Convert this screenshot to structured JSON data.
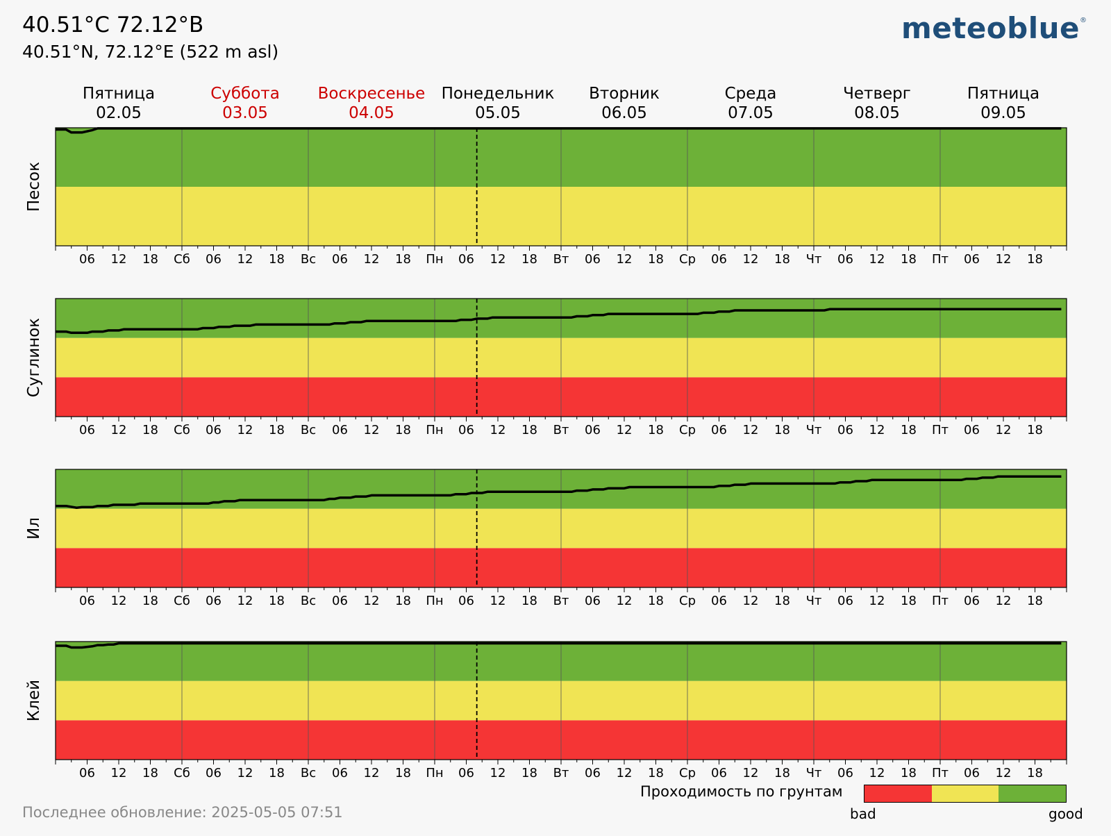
{
  "header": {
    "title": "40.51°C 72.12°B",
    "subtitle": "40.51°N, 72.12°E (522 m asl)"
  },
  "logo": {
    "text": "meteoblue",
    "mark": "®"
  },
  "footer": {
    "last_update": "Последнее обновление: 2025-05-05 07:51"
  },
  "legend": {
    "title": "Проходимость по грунтам",
    "bad_label": "bad",
    "good_label": "good",
    "colors": [
      "#f53535",
      "#f0e454",
      "#6db138"
    ]
  },
  "colors": {
    "good": "#6db138",
    "medium": "#f0e454",
    "bad": "#f53535",
    "weekend_text": "#cc0000",
    "line": "#000000"
  },
  "chart_data": {
    "type": "line",
    "now_marker_hours": 80,
    "days": [
      {
        "name": "Пятница",
        "date": "02.05",
        "weekend": false,
        "short": ""
      },
      {
        "name": "Суббота",
        "date": "03.05",
        "weekend": true,
        "short": "Сб"
      },
      {
        "name": "Воскресенье",
        "date": "04.05",
        "weekend": true,
        "short": "Вс"
      },
      {
        "name": "Понедельник",
        "date": "05.05",
        "weekend": false,
        "short": "Пн"
      },
      {
        "name": "Вторник",
        "date": "06.05",
        "weekend": false,
        "short": "Вт"
      },
      {
        "name": "Среда",
        "date": "07.05",
        "weekend": false,
        "short": "Ср"
      },
      {
        "name": "Четверг",
        "date": "08.05",
        "weekend": false,
        "short": "Чт"
      },
      {
        "name": "Пятница",
        "date": "09.05",
        "weekend": false,
        "short": "Пт"
      }
    ],
    "hour_ticks": [
      "06",
      "12",
      "18"
    ],
    "panels": [
      {
        "ylabel": "Песок",
        "bands": [
          "medium",
          "good"
        ],
        "series": [
          [
            0,
            0.985
          ],
          [
            2,
            0.985
          ],
          [
            3,
            0.96
          ],
          [
            5,
            0.96
          ],
          [
            7,
            0.98
          ],
          [
            8,
            0.995
          ],
          [
            191,
            0.995
          ]
        ]
      },
      {
        "ylabel": "Суглинок",
        "bands": [
          "bad",
          "medium",
          "good"
        ],
        "series": [
          [
            0,
            0.72
          ],
          [
            2,
            0.72
          ],
          [
            3,
            0.71
          ],
          [
            6,
            0.71
          ],
          [
            7,
            0.725
          ],
          [
            9,
            0.725
          ],
          [
            10,
            0.735
          ],
          [
            12,
            0.735
          ],
          [
            13,
            0.745
          ],
          [
            190,
            0.745
          ],
          [
            191,
            0.745
          ]
        ],
        "points": [
          [
            0,
            0.72
          ],
          [
            2,
            0.72
          ],
          [
            3,
            0.71
          ],
          [
            6,
            0.71
          ],
          [
            7,
            0.72
          ],
          [
            9,
            0.72
          ],
          [
            10,
            0.73
          ],
          [
            12,
            0.73
          ],
          [
            13,
            0.74
          ],
          [
            27,
            0.74
          ],
          [
            28,
            0.75
          ],
          [
            30,
            0.75
          ],
          [
            31,
            0.76
          ],
          [
            33,
            0.76
          ],
          [
            34,
            0.77
          ],
          [
            37,
            0.77
          ],
          [
            38,
            0.78
          ],
          [
            52,
            0.78
          ],
          [
            53,
            0.79
          ],
          [
            55,
            0.79
          ],
          [
            56,
            0.8
          ],
          [
            58,
            0.8
          ],
          [
            59,
            0.81
          ],
          [
            76,
            0.81
          ],
          [
            77,
            0.82
          ],
          [
            79,
            0.82
          ],
          [
            80,
            0.83
          ],
          [
            82,
            0.83
          ],
          [
            83,
            0.84
          ],
          [
            98,
            0.84
          ],
          [
            99,
            0.85
          ],
          [
            101,
            0.85
          ],
          [
            102,
            0.86
          ],
          [
            104,
            0.86
          ],
          [
            105,
            0.87
          ],
          [
            122,
            0.87
          ],
          [
            123,
            0.88
          ],
          [
            125,
            0.88
          ],
          [
            126,
            0.89
          ],
          [
            128,
            0.89
          ],
          [
            129,
            0.9
          ],
          [
            146,
            0.9
          ],
          [
            147,
            0.91
          ],
          [
            191,
            0.91
          ]
        ]
      },
      {
        "ylabel": "Ил",
        "bands": [
          "bad",
          "medium",
          "good"
        ],
        "points": [
          [
            0,
            0.69
          ],
          [
            2,
            0.69
          ],
          [
            4,
            0.675
          ],
          [
            5,
            0.68
          ],
          [
            7,
            0.68
          ],
          [
            8,
            0.69
          ],
          [
            10,
            0.69
          ],
          [
            11,
            0.7
          ],
          [
            15,
            0.7
          ],
          [
            16,
            0.71
          ],
          [
            29,
            0.71
          ],
          [
            30,
            0.72
          ],
          [
            31,
            0.72
          ],
          [
            32,
            0.73
          ],
          [
            34,
            0.73
          ],
          [
            35,
            0.74
          ],
          [
            51,
            0.74
          ],
          [
            52,
            0.75
          ],
          [
            53,
            0.75
          ],
          [
            54,
            0.76
          ],
          [
            56,
            0.76
          ],
          [
            57,
            0.77
          ],
          [
            59,
            0.77
          ],
          [
            60,
            0.78
          ],
          [
            75,
            0.78
          ],
          [
            76,
            0.79
          ],
          [
            78,
            0.79
          ],
          [
            79,
            0.8
          ],
          [
            81,
            0.8
          ],
          [
            82,
            0.81
          ],
          [
            98,
            0.81
          ],
          [
            99,
            0.82
          ],
          [
            101,
            0.82
          ],
          [
            102,
            0.83
          ],
          [
            104,
            0.83
          ],
          [
            105,
            0.84
          ],
          [
            108,
            0.84
          ],
          [
            109,
            0.85
          ],
          [
            125,
            0.85
          ],
          [
            126,
            0.86
          ],
          [
            128,
            0.86
          ],
          [
            129,
            0.87
          ],
          [
            131,
            0.87
          ],
          [
            132,
            0.88
          ],
          [
            148,
            0.88
          ],
          [
            149,
            0.89
          ],
          [
            151,
            0.89
          ],
          [
            152,
            0.9
          ],
          [
            154,
            0.9
          ],
          [
            155,
            0.91
          ],
          [
            172,
            0.91
          ],
          [
            173,
            0.92
          ],
          [
            175,
            0.92
          ],
          [
            176,
            0.93
          ],
          [
            178,
            0.93
          ],
          [
            179,
            0.94
          ],
          [
            191,
            0.94
          ]
        ]
      },
      {
        "ylabel": "Клей",
        "bands": [
          "bad",
          "medium",
          "good"
        ],
        "points": [
          [
            0,
            0.965
          ],
          [
            2,
            0.965
          ],
          [
            3,
            0.95
          ],
          [
            5,
            0.95
          ],
          [
            7,
            0.96
          ],
          [
            8,
            0.97
          ],
          [
            9,
            0.97
          ],
          [
            10,
            0.975
          ],
          [
            11,
            0.975
          ],
          [
            12,
            0.985
          ],
          [
            191,
            0.985
          ]
        ]
      }
    ]
  }
}
